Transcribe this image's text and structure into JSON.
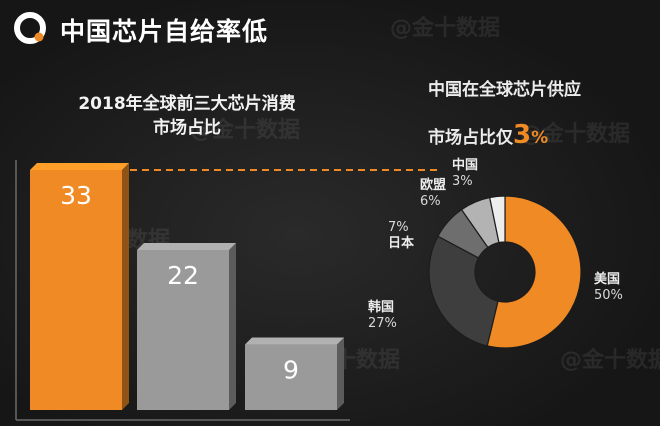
{
  "header": {
    "title": "中国芯片自给率低"
  },
  "watermark": "@金十数据",
  "colors": {
    "accent": "#f08a24",
    "bar_gray": "#9a9a9a",
    "donut_dark": "#3e3e3e",
    "donut_mid": "#6e6e6e",
    "donut_light": "#b3b3b3",
    "donut_white": "#ededed"
  },
  "bar_panel": {
    "title_line1": "2018年全球前三大芯片消费",
    "title_line2": "市场占比"
  },
  "side_note": {
    "line1": "中国在全球芯片供应",
    "line2_prefix": "市场占比仅",
    "value": "3",
    "unit": "%"
  },
  "chart_data": [
    {
      "type": "bar",
      "title": "2018年全球前三大芯片消费市场占比",
      "categories": [
        "",
        "",
        ""
      ],
      "values": [
        33,
        22,
        9
      ],
      "data_labels": [
        "33",
        "22",
        "9"
      ],
      "colors": [
        "#f08a24",
        "#9a9a9a",
        "#9a9a9a"
      ],
      "ylim": [
        0,
        35
      ]
    },
    {
      "type": "pie",
      "title": "中国在全球芯片供应市场占比仅3%",
      "donut": true,
      "slices": [
        {
          "label": "美国",
          "value": 50,
          "value_label": "50%",
          "color": "#f08a24"
        },
        {
          "label": "韩国",
          "value": 27,
          "value_label": "27%",
          "color": "#3e3e3e"
        },
        {
          "label": "日本",
          "value": 7,
          "value_label": "7%",
          "color": "#6e6e6e"
        },
        {
          "label": "欧盟",
          "value": 6,
          "value_label": "6%",
          "color": "#b3b3b3"
        },
        {
          "label": "中国",
          "value": 3,
          "value_label": "3%",
          "color": "#ededed"
        }
      ]
    }
  ]
}
